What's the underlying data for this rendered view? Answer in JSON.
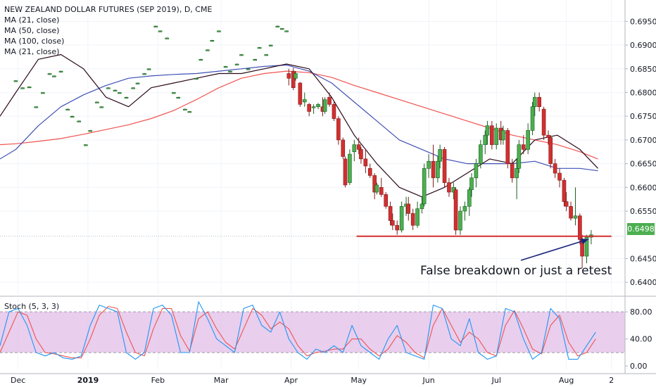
{
  "legend": {
    "title": "NEW ZEALAND DOLLAR FUTURES (SEP 2019), D, CME",
    "indicators": [
      "MA (21, close)",
      "MA (50, close)",
      "MA (100, close)",
      "MA (21, close)"
    ]
  },
  "stoch_label": "Stoch (5, 3, 3)",
  "annotation_text": "False breakdown or just a retest",
  "last_price": "0.6498",
  "colors": {
    "up": "#26a69a",
    "down": "#d32f2f",
    "ma21": "#2a0a1a",
    "ma50": "#3f51b5",
    "ma100": "#ef5350",
    "support": "#d32f2f",
    "arrow": "#1a237e",
    "stoch_k": "#2196f3",
    "stoch_d": "#ef5350",
    "stoch_band": "#e1bee7"
  },
  "chart_data": {
    "type": "candlestick",
    "y_ticks": [
      "0.6950",
      "0.6900",
      "0.6850",
      "0.6800",
      "0.6750",
      "0.6700",
      "0.6650",
      "0.6600",
      "0.6550",
      "0.6450",
      "0.6400"
    ],
    "y_tick_values": [
      0.695,
      0.69,
      0.685,
      0.68,
      0.675,
      0.67,
      0.665,
      0.66,
      0.655,
      0.645,
      0.64
    ],
    "y_range": [
      0.6375,
      0.6995
    ],
    "x_ticks": [
      "Dec",
      "2019",
      "Feb",
      "Mar",
      "Apr",
      "May",
      "Jun",
      "Jul",
      "Aug",
      "2"
    ],
    "x_tick_days": [
      1,
      32,
      63,
      91,
      122,
      152,
      183,
      213,
      244,
      264
    ],
    "x_range_days": [
      -7,
      270
    ],
    "support_level": 0.6497,
    "support_span_days": [
      151,
      264
    ],
    "stoch_ticks": [
      "80.00",
      "40.00",
      "0.00"
    ],
    "stoch_tick_values": [
      80,
      40,
      0
    ],
    "stoch_band": [
      20,
      80
    ],
    "stoch_range": [
      -5,
      100
    ],
    "candles": [
      [
        0,
        0.6825,
        0.6826,
        0.6824,
        0.6825
      ],
      [
        3,
        0.681,
        0.6811,
        0.6809,
        0.681
      ],
      [
        6,
        0.6812,
        0.6813,
        0.6811,
        0.6812
      ],
      [
        9,
        0.677,
        0.6771,
        0.6769,
        0.677
      ],
      [
        12,
        0.68,
        0.6801,
        0.6799,
        0.68
      ],
      [
        15,
        0.684,
        0.6841,
        0.6839,
        0.684
      ],
      [
        17,
        0.6835,
        0.6836,
        0.6834,
        0.6835
      ],
      [
        20,
        0.6845,
        0.6846,
        0.6844,
        0.6845
      ],
      [
        23,
        0.6765,
        0.6766,
        0.6764,
        0.6765
      ],
      [
        25,
        0.675,
        0.6751,
        0.6749,
        0.675
      ],
      [
        28,
        0.674,
        0.6741,
        0.6739,
        0.674
      ],
      [
        31,
        0.669,
        0.6691,
        0.6689,
        0.669
      ],
      [
        33,
        0.672,
        0.6721,
        0.6719,
        0.672
      ],
      [
        36,
        0.678,
        0.6781,
        0.6779,
        0.678
      ],
      [
        38,
        0.677,
        0.6771,
        0.6769,
        0.677
      ],
      [
        41,
        0.681,
        0.6811,
        0.6809,
        0.681
      ],
      [
        44,
        0.6805,
        0.6806,
        0.6804,
        0.6805
      ],
      [
        46,
        0.68,
        0.6801,
        0.6799,
        0.68
      ],
      [
        49,
        0.679,
        0.6791,
        0.6789,
        0.679
      ],
      [
        52,
        0.681,
        0.6811,
        0.6809,
        0.681
      ],
      [
        54,
        0.682,
        0.6821,
        0.6819,
        0.682
      ],
      [
        57,
        0.684,
        0.6841,
        0.6839,
        0.684
      ],
      [
        59,
        0.685,
        0.6851,
        0.6849,
        0.685
      ],
      [
        62,
        0.694,
        0.6941,
        0.6939,
        0.694
      ],
      [
        64,
        0.693,
        0.6931,
        0.6929,
        0.693
      ],
      [
        67,
        0.6915,
        0.6916,
        0.6914,
        0.6915
      ],
      [
        70,
        0.68,
        0.6801,
        0.6799,
        0.68
      ],
      [
        72,
        0.679,
        0.6791,
        0.6789,
        0.679
      ],
      [
        75,
        0.6765,
        0.6766,
        0.6764,
        0.6765
      ],
      [
        77,
        0.676,
        0.6761,
        0.6759,
        0.676
      ],
      [
        80,
        0.683,
        0.6831,
        0.6829,
        0.683
      ],
      [
        82,
        0.687,
        0.6871,
        0.6869,
        0.687
      ],
      [
        85,
        0.689,
        0.6891,
        0.6889,
        0.689
      ],
      [
        87,
        0.691,
        0.6911,
        0.6909,
        0.691
      ],
      [
        90,
        0.693,
        0.6931,
        0.6929,
        0.693
      ],
      [
        93,
        0.6855,
        0.6856,
        0.6854,
        0.6855
      ],
      [
        95,
        0.6845,
        0.6846,
        0.6844,
        0.6845
      ],
      [
        98,
        0.686,
        0.6861,
        0.6859,
        0.686
      ],
      [
        100,
        0.688,
        0.6881,
        0.6879,
        0.688
      ],
      [
        103,
        0.685,
        0.6851,
        0.6849,
        0.685
      ],
      [
        106,
        0.687,
        0.6871,
        0.6869,
        0.687
      ],
      [
        108,
        0.6895,
        0.6896,
        0.6894,
        0.6895
      ],
      [
        111,
        0.688,
        0.6881,
        0.6879,
        0.688
      ],
      [
        113,
        0.69,
        0.6901,
        0.6899,
        0.69
      ],
      [
        116,
        0.694,
        0.6941,
        0.6939,
        0.694
      ],
      [
        118,
        0.6935,
        0.6936,
        0.6934,
        0.6935
      ],
      [
        120,
        0.693,
        0.6931,
        0.6929,
        0.693
      ],
      [
        121,
        0.684,
        0.685,
        0.6815,
        0.683
      ],
      [
        123,
        0.6845,
        0.6852,
        0.6805,
        0.681
      ],
      [
        124,
        0.683,
        0.6845,
        0.6825,
        0.684
      ],
      [
        126,
        0.682,
        0.6822,
        0.677,
        0.6775
      ],
      [
        128,
        0.678,
        0.68,
        0.677,
        0.6785
      ],
      [
        130,
        0.6775,
        0.6778,
        0.675,
        0.676
      ],
      [
        132,
        0.677,
        0.6775,
        0.6755,
        0.677
      ],
      [
        134,
        0.677,
        0.6778,
        0.6765,
        0.6775
      ],
      [
        136,
        0.677,
        0.679,
        0.675,
        0.676
      ],
      [
        137,
        0.676,
        0.679,
        0.6755,
        0.6785
      ],
      [
        139,
        0.679,
        0.68,
        0.677,
        0.6775
      ],
      [
        141,
        0.6775,
        0.678,
        0.674,
        0.6745
      ],
      [
        143,
        0.6745,
        0.675,
        0.669,
        0.67
      ],
      [
        145,
        0.67,
        0.6705,
        0.666,
        0.6665
      ],
      [
        146,
        0.666,
        0.6665,
        0.66,
        0.6605
      ],
      [
        148,
        0.661,
        0.668,
        0.6605,
        0.667
      ],
      [
        150,
        0.6675,
        0.67,
        0.6655,
        0.669
      ],
      [
        152,
        0.669,
        0.6705,
        0.667,
        0.668
      ],
      [
        153,
        0.668,
        0.6685,
        0.665,
        0.666
      ],
      [
        155,
        0.666,
        0.668,
        0.663,
        0.6645
      ],
      [
        157,
        0.664,
        0.665,
        0.662,
        0.6625
      ],
      [
        159,
        0.6625,
        0.663,
        0.6575,
        0.659
      ],
      [
        160,
        0.659,
        0.661,
        0.6585,
        0.6605
      ],
      [
        162,
        0.66,
        0.662,
        0.658,
        0.6585
      ],
      [
        164,
        0.6585,
        0.659,
        0.6555,
        0.656
      ],
      [
        166,
        0.656,
        0.657,
        0.652,
        0.653
      ],
      [
        167,
        0.653,
        0.6545,
        0.651,
        0.652
      ],
      [
        169,
        0.652,
        0.653,
        0.65,
        0.651
      ],
      [
        171,
        0.651,
        0.657,
        0.6505,
        0.656
      ],
      [
        173,
        0.656,
        0.658,
        0.654,
        0.6565
      ],
      [
        174,
        0.6565,
        0.658,
        0.653,
        0.6545
      ],
      [
        176,
        0.6545,
        0.6555,
        0.651,
        0.652
      ],
      [
        178,
        0.652,
        0.657,
        0.6515,
        0.6555
      ],
      [
        180,
        0.6555,
        0.658,
        0.6545,
        0.6565
      ],
      [
        181,
        0.6565,
        0.665,
        0.656,
        0.664
      ],
      [
        183,
        0.664,
        0.667,
        0.662,
        0.6655
      ],
      [
        185,
        0.6655,
        0.669,
        0.66,
        0.662
      ],
      [
        187,
        0.662,
        0.6665,
        0.661,
        0.6655
      ],
      [
        188,
        0.6655,
        0.669,
        0.664,
        0.668
      ],
      [
        190,
        0.668,
        0.6685,
        0.66,
        0.661
      ],
      [
        192,
        0.661,
        0.662,
        0.658,
        0.659
      ],
      [
        194,
        0.659,
        0.661,
        0.6575,
        0.66
      ],
      [
        195,
        0.6595,
        0.66,
        0.65,
        0.651
      ],
      [
        197,
        0.651,
        0.656,
        0.65,
        0.655
      ],
      [
        199,
        0.655,
        0.657,
        0.653,
        0.656
      ],
      [
        201,
        0.656,
        0.66,
        0.654,
        0.6595
      ],
      [
        202,
        0.6595,
        0.663,
        0.658,
        0.662
      ],
      [
        204,
        0.662,
        0.666,
        0.66,
        0.665
      ],
      [
        206,
        0.665,
        0.67,
        0.664,
        0.669
      ],
      [
        208,
        0.669,
        0.672,
        0.667,
        0.671
      ],
      [
        209,
        0.671,
        0.674,
        0.669,
        0.673
      ],
      [
        211,
        0.673,
        0.674,
        0.668,
        0.669
      ],
      [
        213,
        0.669,
        0.6735,
        0.668,
        0.6725
      ],
      [
        215,
        0.6725,
        0.674,
        0.669,
        0.67
      ],
      [
        216,
        0.67,
        0.673,
        0.669,
        0.672
      ],
      [
        218,
        0.672,
        0.6725,
        0.664,
        0.665
      ],
      [
        220,
        0.665,
        0.666,
        0.661,
        0.662
      ],
      [
        222,
        0.662,
        0.666,
        0.6575,
        0.664
      ],
      [
        223,
        0.664,
        0.67,
        0.663,
        0.669
      ],
      [
        225,
        0.669,
        0.671,
        0.667,
        0.668
      ],
      [
        227,
        0.668,
        0.6735,
        0.667,
        0.672
      ],
      [
        229,
        0.672,
        0.678,
        0.671,
        0.677
      ],
      [
        230,
        0.677,
        0.68,
        0.675,
        0.679
      ],
      [
        232,
        0.679,
        0.68,
        0.676,
        0.677
      ],
      [
        234,
        0.6765,
        0.677,
        0.67,
        0.671
      ],
      [
        236,
        0.671,
        0.672,
        0.669,
        0.6705
      ],
      [
        237,
        0.6705,
        0.671,
        0.664,
        0.665
      ],
      [
        239,
        0.665,
        0.666,
        0.662,
        0.663
      ],
      [
        241,
        0.663,
        0.664,
        0.66,
        0.6615
      ],
      [
        243,
        0.6615,
        0.662,
        0.656,
        0.657
      ],
      [
        244,
        0.657,
        0.659,
        0.655,
        0.656
      ],
      [
        246,
        0.656,
        0.657,
        0.653,
        0.6535
      ],
      [
        248,
        0.6535,
        0.66,
        0.652,
        0.654
      ],
      [
        250,
        0.654,
        0.6545,
        0.648,
        0.649
      ],
      [
        251,
        0.649,
        0.65,
        0.643,
        0.6455
      ],
      [
        253,
        0.6455,
        0.65,
        0.644,
        0.6495
      ],
      [
        255,
        0.6495,
        0.651,
        0.648,
        0.65
      ]
    ],
    "ma_days": [
      -7,
      0,
      10,
      20,
      30,
      40,
      50,
      60,
      70,
      80,
      90,
      100,
      110,
      120,
      130,
      140,
      150,
      160,
      170,
      180,
      190,
      200,
      210,
      220,
      230,
      240,
      250,
      258
    ],
    "ma21": [
      0.675,
      0.68,
      0.687,
      0.688,
      0.685,
      0.679,
      0.677,
      0.681,
      0.682,
      0.683,
      0.684,
      0.684,
      0.685,
      0.686,
      0.685,
      0.679,
      0.671,
      0.665,
      0.66,
      0.658,
      0.66,
      0.663,
      0.666,
      0.665,
      0.67,
      0.671,
      0.668,
      0.664
    ],
    "ma50": [
      0.666,
      0.668,
      0.673,
      0.677,
      0.6795,
      0.6815,
      0.683,
      0.6835,
      0.6838,
      0.684,
      0.6845,
      0.685,
      0.6855,
      0.6858,
      0.6845,
      0.682,
      0.678,
      0.674,
      0.67,
      0.668,
      0.666,
      0.665,
      0.665,
      0.665,
      0.6655,
      0.664,
      0.664,
      0.6635
    ],
    "ma100": [
      0.669,
      0.6692,
      0.6697,
      0.6703,
      0.6712,
      0.6722,
      0.6732,
      0.6745,
      0.6762,
      0.6785,
      0.681,
      0.683,
      0.684,
      0.6845,
      0.6842,
      0.6832,
      0.6815,
      0.68,
      0.6785,
      0.677,
      0.6755,
      0.674,
      0.6725,
      0.671,
      0.67,
      0.669,
      0.6675,
      0.666
    ],
    "stoch_days": [
      -7,
      -3,
      1,
      5,
      9,
      13,
      17,
      21,
      25,
      29,
      33,
      37,
      41,
      45,
      49,
      53,
      57,
      61,
      65,
      69,
      73,
      77,
      81,
      85,
      89,
      93,
      97,
      101,
      105,
      109,
      113,
      117,
      121,
      125,
      129,
      133,
      137,
      141,
      145,
      149,
      153,
      157,
      161,
      165,
      169,
      173,
      177,
      181,
      185,
      189,
      193,
      197,
      201,
      205,
      209,
      213,
      217,
      221,
      225,
      229,
      233,
      237,
      241,
      245,
      249,
      253,
      257
    ],
    "stoch_k": [
      30,
      80,
      85,
      60,
      20,
      15,
      20,
      12,
      10,
      15,
      60,
      90,
      85,
      80,
      20,
      10,
      20,
      85,
      90,
      75,
      20,
      20,
      95,
      70,
      40,
      30,
      20,
      85,
      90,
      60,
      50,
      80,
      40,
      20,
      10,
      25,
      20,
      30,
      20,
      60,
      30,
      20,
      10,
      40,
      60,
      20,
      15,
      10,
      90,
      85,
      40,
      30,
      70,
      20,
      10,
      15,
      85,
      80,
      40,
      10,
      20,
      85,
      70,
      10,
      10,
      30,
      50
    ],
    "stoch_d": [
      20,
      50,
      80,
      75,
      40,
      20,
      18,
      15,
      12,
      12,
      40,
      75,
      88,
      85,
      50,
      20,
      15,
      55,
      85,
      85,
      45,
      22,
      70,
      80,
      55,
      35,
      25,
      55,
      85,
      75,
      55,
      65,
      55,
      30,
      15,
      20,
      22,
      25,
      25,
      40,
      40,
      25,
      15,
      25,
      45,
      35,
      20,
      12,
      60,
      85,
      60,
      35,
      50,
      40,
      20,
      15,
      60,
      82,
      55,
      25,
      18,
      60,
      75,
      35,
      15,
      20,
      40
    ]
  }
}
